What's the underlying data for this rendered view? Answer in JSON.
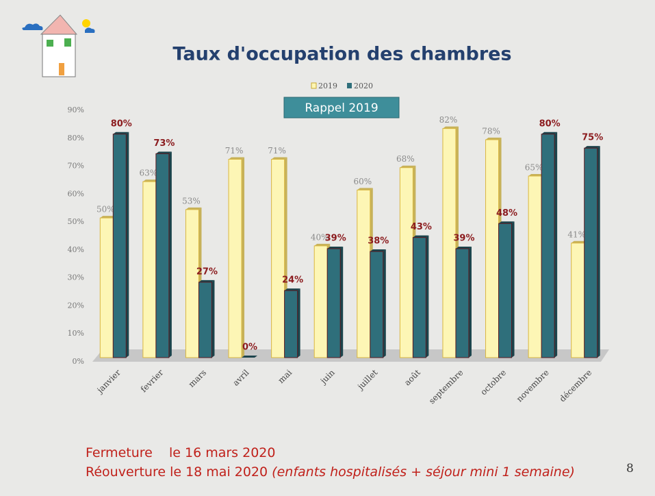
{
  "chart_data": {
    "type": "bar",
    "title": "Taux d'occupation des chambres",
    "annotation": "Rappel 2019",
    "categories": [
      "janvier",
      "fevrier",
      "mars",
      "avril",
      "mai",
      "juin",
      "juillet",
      "août",
      "septembre",
      "octobre",
      "novembre",
      "décembre"
    ],
    "series": [
      {
        "name": "2019",
        "color": "#fdf6b5",
        "values": [
          50,
          63,
          53,
          71,
          71,
          40,
          60,
          68,
          82,
          78,
          65,
          41
        ],
        "value_labels": [
          "50%",
          "63%",
          "53%",
          "71%",
          "71%",
          "40%",
          "60%",
          "68%",
          "82%",
          "78%",
          "65%",
          "41%"
        ]
      },
      {
        "name": "2020",
        "color": "#2f6f7b",
        "values": [
          80,
          73,
          27,
          0,
          24,
          39,
          38,
          43,
          39,
          48,
          80,
          75
        ],
        "value_labels": [
          "80%",
          "73%",
          "27%",
          "0%",
          "24%",
          "39%",
          "38%",
          "43%",
          "39%",
          "48%",
          "80%",
          "75%"
        ]
      }
    ],
    "ylim": [
      0,
      90
    ],
    "yticks": [
      {
        "value": 0,
        "label": "0%"
      },
      {
        "value": 10,
        "label": "10%"
      },
      {
        "value": 20,
        "label": "20%"
      },
      {
        "value": 30,
        "label": "30%"
      },
      {
        "value": 40,
        "label": "40%"
      },
      {
        "value": 50,
        "label": "50%"
      },
      {
        "value": 60,
        "label": "60%"
      },
      {
        "value": 70,
        "label": "70%"
      },
      {
        "value": 80,
        "label": "80%"
      },
      {
        "value": 90,
        "label": "90%"
      }
    ],
    "legend": "top",
    "footer": {
      "line1": "Fermeture    le 16 mars 2020",
      "line2": "Réouverture le 18 mai 2020",
      "line2_note": "(enfants hospitalisés + séjour mini 1 semaine)"
    },
    "page_number": "8"
  }
}
